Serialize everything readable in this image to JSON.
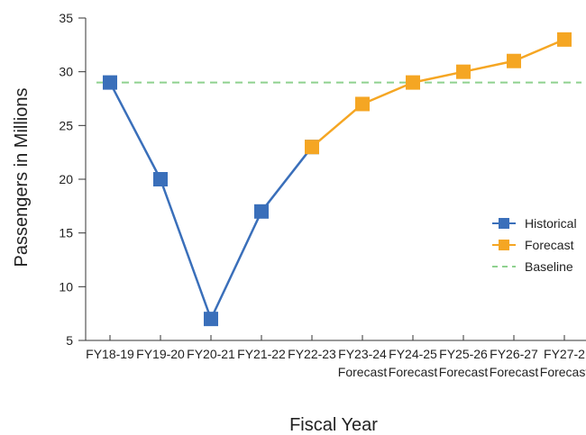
{
  "chart_data": {
    "type": "line",
    "title": "",
    "xlabel": "Fiscal Year",
    "ylabel": "Passengers in Millions",
    "categories": [
      [
        "FY18-19"
      ],
      [
        "FY19-20"
      ],
      [
        "FY20-21"
      ],
      [
        "FY21-22"
      ],
      [
        "FY22-23"
      ],
      [
        "FY23-24",
        "Forecast"
      ],
      [
        "FY24-25",
        "Forecast"
      ],
      [
        "FY25-26",
        "Forecast"
      ],
      [
        "FY26-27",
        "Forecast"
      ],
      [
        "FY27-2",
        "Forecast"
      ]
    ],
    "ylim": [
      5,
      35
    ],
    "yticks": [
      5,
      10,
      15,
      20,
      25,
      30,
      35
    ],
    "grid": false,
    "legend_position": "right",
    "series": [
      {
        "name": "Historical",
        "color": "#3a6fba",
        "marker": "square",
        "style": "solid",
        "values": [
          29,
          20,
          7,
          17,
          23,
          null,
          null,
          null,
          null,
          null
        ]
      },
      {
        "name": "Forecast",
        "color": "#f5a623",
        "marker": "square",
        "style": "solid",
        "values": [
          null,
          null,
          null,
          null,
          23,
          27,
          29,
          30,
          31,
          33
        ]
      },
      {
        "name": "Baseline",
        "color": "#8fd18f",
        "marker": "none",
        "style": "dashed",
        "value": 29
      }
    ]
  }
}
